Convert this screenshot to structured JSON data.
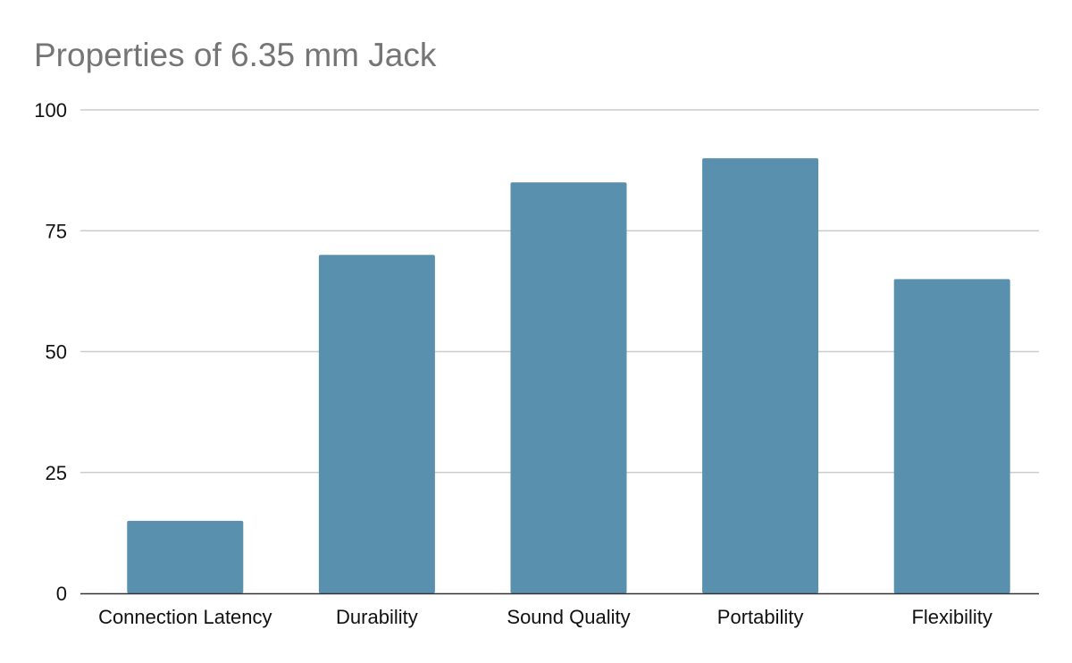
{
  "chart_data": {
    "type": "bar",
    "title": "Properties of 6.35 mm Jack",
    "xlabel": "",
    "ylabel": "",
    "categories": [
      "Connection Latency",
      "Durability",
      "Sound Quality",
      "Portability",
      "Flexibility"
    ],
    "values": [
      15,
      70,
      85,
      90,
      65
    ],
    "ylim": [
      0,
      100
    ],
    "yticks": [
      0,
      25,
      50,
      75,
      100
    ],
    "grid": true,
    "legend": "none",
    "bar_color": "#5990ae",
    "title_color": "#757575"
  }
}
